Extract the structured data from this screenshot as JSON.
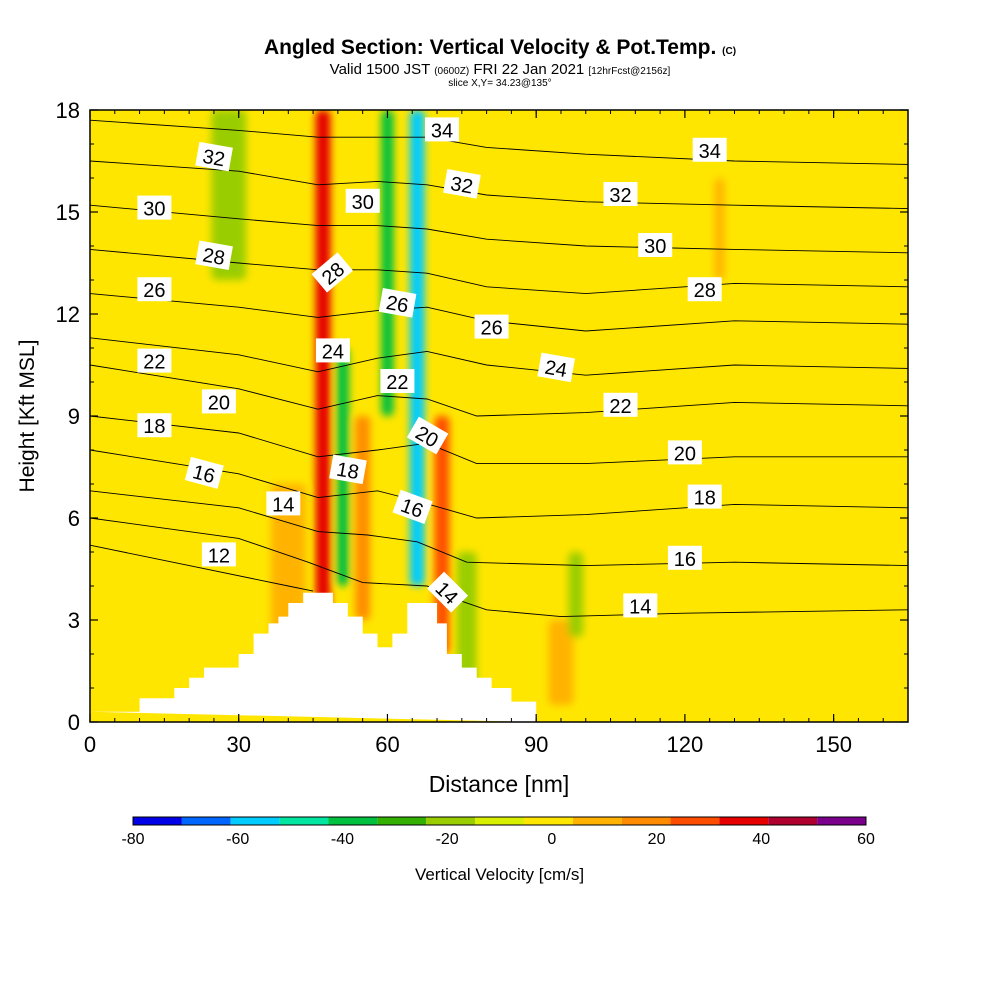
{
  "header": {
    "title": "Angled Section: Vertical Velocity & Pot.Temp.",
    "title_mark": "(C)",
    "sub_a": "Valid 1500 JST",
    "sub_b": "(0600Z)",
    "sub_c": "FRI 22 Jan 2021",
    "sub_d": "[12hrFcst@2156z]",
    "slice": "slice X,Y= 34.23@135°"
  },
  "chart_data": {
    "type": "heatmap",
    "xlabel": "Distance [nm]",
    "ylabel": "Height [Kft MSL]",
    "xlim": [
      0,
      165
    ],
    "ylim": [
      0,
      18
    ],
    "x_ticks": [
      0,
      30,
      60,
      90,
      120,
      150
    ],
    "y_ticks": [
      0,
      3,
      6,
      9,
      12,
      15,
      18
    ],
    "colorbar": {
      "label": "Vertical Velocity [cm/s]",
      "ticks": [
        -80,
        -60,
        -40,
        -20,
        0,
        20,
        40,
        60
      ],
      "bins": [
        -80,
        -70,
        -60,
        -50,
        -40,
        -30,
        -20,
        -10,
        0,
        10,
        20,
        30,
        40,
        50,
        60
      ],
      "colors": [
        "#0000e6",
        "#0066ff",
        "#00ccff",
        "#00e6a0",
        "#00c040",
        "#33b000",
        "#9acd00",
        "#d8f000",
        "#ffe600",
        "#ffb300",
        "#ff8c00",
        "#ff4d00",
        "#e60000",
        "#b00030",
        "#7a008c"
      ]
    },
    "background_value_color": "#ffe600",
    "velocity_features": [
      {
        "x": 47,
        "w": 3,
        "z0": 2.5,
        "z1": 18,
        "v": 45
      },
      {
        "x": 51,
        "w": 2.5,
        "z0": 4,
        "z1": 11,
        "v": -35
      },
      {
        "x": 55,
        "w": 3,
        "z0": 3,
        "z1": 9,
        "v": 25
      },
      {
        "x": 60,
        "w": 2.5,
        "z0": 9,
        "z1": 18,
        "v": -35
      },
      {
        "x": 66,
        "w": 3,
        "z0": 4,
        "z1": 18,
        "v": -55
      },
      {
        "x": 71,
        "w": 3,
        "z0": 2,
        "z1": 9,
        "v": 30
      },
      {
        "x": 76,
        "w": 4,
        "z0": 1,
        "z1": 5,
        "v": -20
      },
      {
        "x": 28,
        "w": 7,
        "z0": 13,
        "z1": 18,
        "v": -15
      },
      {
        "x": 12,
        "w": 12,
        "z0": 0,
        "z1": 9,
        "v": 8
      },
      {
        "x": 40,
        "w": 7,
        "z0": 2.5,
        "z1": 7,
        "v": 18
      },
      {
        "x": 95,
        "w": 5,
        "z0": 0.5,
        "z1": 3,
        "v": 18
      },
      {
        "x": 98,
        "w": 3,
        "z0": 2.5,
        "z1": 5,
        "v": -15
      },
      {
        "x": 133,
        "w": 6,
        "z0": 0,
        "z1": 18,
        "v": 8
      },
      {
        "x": 155,
        "w": 6,
        "z0": 0,
        "z1": 4,
        "v": 8
      },
      {
        "x": 127,
        "w": 2,
        "z0": 13,
        "z1": 16,
        "v": 15
      },
      {
        "x": 117,
        "w": 8,
        "z0": 6,
        "z1": 18,
        "v": 6
      }
    ],
    "terrain": [
      [
        0,
        0.3
      ],
      [
        10,
        0.3
      ],
      [
        10,
        0.7
      ],
      [
        17,
        0.7
      ],
      [
        17,
        1.0
      ],
      [
        20,
        1.0
      ],
      [
        20,
        1.3
      ],
      [
        23,
        1.3
      ],
      [
        23,
        1.6
      ],
      [
        30,
        1.6
      ],
      [
        30,
        2.0
      ],
      [
        33,
        2.0
      ],
      [
        33,
        2.6
      ],
      [
        36,
        2.6
      ],
      [
        36,
        2.9
      ],
      [
        38,
        2.9
      ],
      [
        38,
        3.1
      ],
      [
        40,
        3.1
      ],
      [
        40,
        3.5
      ],
      [
        43,
        3.5
      ],
      [
        43,
        3.8
      ],
      [
        49,
        3.8
      ],
      [
        49,
        3.5
      ],
      [
        52,
        3.5
      ],
      [
        52,
        3.1
      ],
      [
        55,
        3.1
      ],
      [
        55,
        2.6
      ],
      [
        58,
        2.6
      ],
      [
        58,
        2.2
      ],
      [
        61,
        2.2
      ],
      [
        61,
        2.6
      ],
      [
        64,
        2.6
      ],
      [
        64,
        3.5
      ],
      [
        70,
        3.5
      ],
      [
        70,
        2.9
      ],
      [
        72,
        2.9
      ],
      [
        72,
        2.0
      ],
      [
        75,
        2.0
      ],
      [
        75,
        1.6
      ],
      [
        78,
        1.6
      ],
      [
        78,
        1.3
      ],
      [
        81,
        1.3
      ],
      [
        81,
        1.0
      ],
      [
        85,
        1.0
      ],
      [
        85,
        0.6
      ],
      [
        90,
        0.6
      ],
      [
        90,
        0
      ]
    ],
    "pot_temp_contours": [
      {
        "v": 12,
        "pts": [
          [
            0,
            5.2
          ],
          [
            20,
            4.6
          ],
          [
            40,
            4.0
          ],
          [
            45,
            3.85
          ]
        ]
      },
      {
        "v": 14,
        "pts": [
          [
            0,
            6.0
          ],
          [
            30,
            5.4
          ],
          [
            44,
            4.7
          ],
          [
            55,
            4.1
          ],
          [
            68,
            4.0
          ],
          [
            74,
            3.6
          ],
          [
            80,
            3.3
          ],
          [
            95,
            3.1
          ],
          [
            120,
            3.2
          ],
          [
            165,
            3.3
          ]
        ]
      },
      {
        "v": 16,
        "pts": [
          [
            0,
            6.8
          ],
          [
            30,
            6.3
          ],
          [
            46,
            5.6
          ],
          [
            56,
            5.5
          ],
          [
            66,
            5.3
          ],
          [
            76,
            4.7
          ],
          [
            100,
            4.6
          ],
          [
            130,
            4.7
          ],
          [
            165,
            4.6
          ]
        ]
      },
      {
        "v": 18,
        "pts": [
          [
            0,
            8.0
          ],
          [
            30,
            7.3
          ],
          [
            46,
            6.6
          ],
          [
            58,
            6.8
          ],
          [
            66,
            6.5
          ],
          [
            78,
            6.0
          ],
          [
            100,
            6.1
          ],
          [
            130,
            6.4
          ],
          [
            165,
            6.3
          ]
        ]
      },
      {
        "v": 20,
        "pts": [
          [
            0,
            9.0
          ],
          [
            30,
            8.5
          ],
          [
            46,
            7.8
          ],
          [
            58,
            8.0
          ],
          [
            68,
            8.2
          ],
          [
            78,
            7.6
          ],
          [
            100,
            7.6
          ],
          [
            130,
            7.8
          ],
          [
            165,
            7.8
          ]
        ]
      },
      {
        "v": 22,
        "pts": [
          [
            0,
            10.5
          ],
          [
            30,
            9.8
          ],
          [
            46,
            9.2
          ],
          [
            58,
            9.6
          ],
          [
            68,
            9.5
          ],
          [
            78,
            9.0
          ],
          [
            100,
            9.1
          ],
          [
            130,
            9.4
          ],
          [
            165,
            9.3
          ]
        ]
      },
      {
        "v": 24,
        "pts": [
          [
            0,
            11.3
          ],
          [
            30,
            10.8
          ],
          [
            46,
            10.3
          ],
          [
            58,
            10.7
          ],
          [
            68,
            10.9
          ],
          [
            80,
            10.5
          ],
          [
            100,
            10.2
          ],
          [
            130,
            10.5
          ],
          [
            165,
            10.4
          ]
        ]
      },
      {
        "v": 26,
        "pts": [
          [
            0,
            12.6
          ],
          [
            30,
            12.2
          ],
          [
            46,
            11.9
          ],
          [
            58,
            12.1
          ],
          [
            68,
            12.2
          ],
          [
            80,
            11.8
          ],
          [
            100,
            11.5
          ],
          [
            130,
            11.8
          ],
          [
            165,
            11.7
          ]
        ]
      },
      {
        "v": 28,
        "pts": [
          [
            0,
            13.9
          ],
          [
            30,
            13.5
          ],
          [
            46,
            13.3
          ],
          [
            58,
            13.3
          ],
          [
            68,
            13.2
          ],
          [
            80,
            12.8
          ],
          [
            100,
            12.6
          ],
          [
            130,
            12.9
          ],
          [
            165,
            12.8
          ]
        ]
      },
      {
        "v": 30,
        "pts": [
          [
            0,
            15.2
          ],
          [
            30,
            14.8
          ],
          [
            46,
            14.6
          ],
          [
            58,
            14.6
          ],
          [
            68,
            14.5
          ],
          [
            80,
            14.2
          ],
          [
            100,
            14.0
          ],
          [
            130,
            13.9
          ],
          [
            165,
            13.8
          ]
        ]
      },
      {
        "v": 32,
        "pts": [
          [
            0,
            16.5
          ],
          [
            30,
            16.2
          ],
          [
            46,
            15.8
          ],
          [
            58,
            15.9
          ],
          [
            68,
            15.8
          ],
          [
            80,
            15.5
          ],
          [
            100,
            15.3
          ],
          [
            130,
            15.2
          ],
          [
            165,
            15.1
          ]
        ]
      },
      {
        "v": 34,
        "pts": [
          [
            0,
            17.7
          ],
          [
            30,
            17.4
          ],
          [
            46,
            17.2
          ],
          [
            58,
            17.2
          ],
          [
            68,
            17.2
          ],
          [
            80,
            16.9
          ],
          [
            100,
            16.7
          ],
          [
            130,
            16.5
          ],
          [
            165,
            16.4
          ]
        ]
      }
    ],
    "contour_labels": [
      {
        "text": "32",
        "x": 25,
        "y": 16.6,
        "rot": 10
      },
      {
        "text": "30",
        "x": 13,
        "y": 15.1,
        "rot": 0
      },
      {
        "text": "28",
        "x": 25,
        "y": 13.7,
        "rot": 10
      },
      {
        "text": "26",
        "x": 13,
        "y": 12.7,
        "rot": 0
      },
      {
        "text": "22",
        "x": 13,
        "y": 10.6,
        "rot": 0
      },
      {
        "text": "20",
        "x": 26,
        "y": 9.4,
        "rot": 0
      },
      {
        "text": "18",
        "x": 13,
        "y": 8.7,
        "rot": 0
      },
      {
        "text": "16",
        "x": 23,
        "y": 7.3,
        "rot": 15
      },
      {
        "text": "14",
        "x": 39,
        "y": 6.4,
        "rot": 0
      },
      {
        "text": "12",
        "x": 26,
        "y": 4.9,
        "rot": 0
      },
      {
        "text": "30",
        "x": 55,
        "y": 15.3,
        "rot": 0
      },
      {
        "text": "28",
        "x": 49,
        "y": 13.2,
        "rot": -40
      },
      {
        "text": "24",
        "x": 49,
        "y": 10.9,
        "rot": 0
      },
      {
        "text": "26",
        "x": 62,
        "y": 12.3,
        "rot": 10
      },
      {
        "text": "22",
        "x": 62,
        "y": 10.0,
        "rot": 0
      },
      {
        "text": "20",
        "x": 68,
        "y": 8.4,
        "rot": 30
      },
      {
        "text": "18",
        "x": 52,
        "y": 7.4,
        "rot": 10
      },
      {
        "text": "16",
        "x": 65,
        "y": 6.3,
        "rot": 20
      },
      {
        "text": "14",
        "x": 72,
        "y": 3.8,
        "rot": 45
      },
      {
        "text": "34",
        "x": 71,
        "y": 17.4,
        "rot": 0
      },
      {
        "text": "32",
        "x": 75,
        "y": 15.8,
        "rot": 10
      },
      {
        "text": "26",
        "x": 81,
        "y": 11.6,
        "rot": 0
      },
      {
        "text": "24",
        "x": 94,
        "y": 10.4,
        "rot": 10
      },
      {
        "text": "22",
        "x": 107,
        "y": 9.3,
        "rot": 0
      },
      {
        "text": "32",
        "x": 107,
        "y": 15.5,
        "rot": 0
      },
      {
        "text": "30",
        "x": 114,
        "y": 14.0,
        "rot": 0
      },
      {
        "text": "34",
        "x": 125,
        "y": 16.8,
        "rot": 0
      },
      {
        "text": "28",
        "x": 124,
        "y": 12.7,
        "rot": 0
      },
      {
        "text": "20",
        "x": 120,
        "y": 7.9,
        "rot": 0
      },
      {
        "text": "18",
        "x": 124,
        "y": 6.6,
        "rot": 0
      },
      {
        "text": "16",
        "x": 120,
        "y": 4.8,
        "rot": 0
      },
      {
        "text": "14",
        "x": 111,
        "y": 3.4,
        "rot": 0
      }
    ]
  }
}
